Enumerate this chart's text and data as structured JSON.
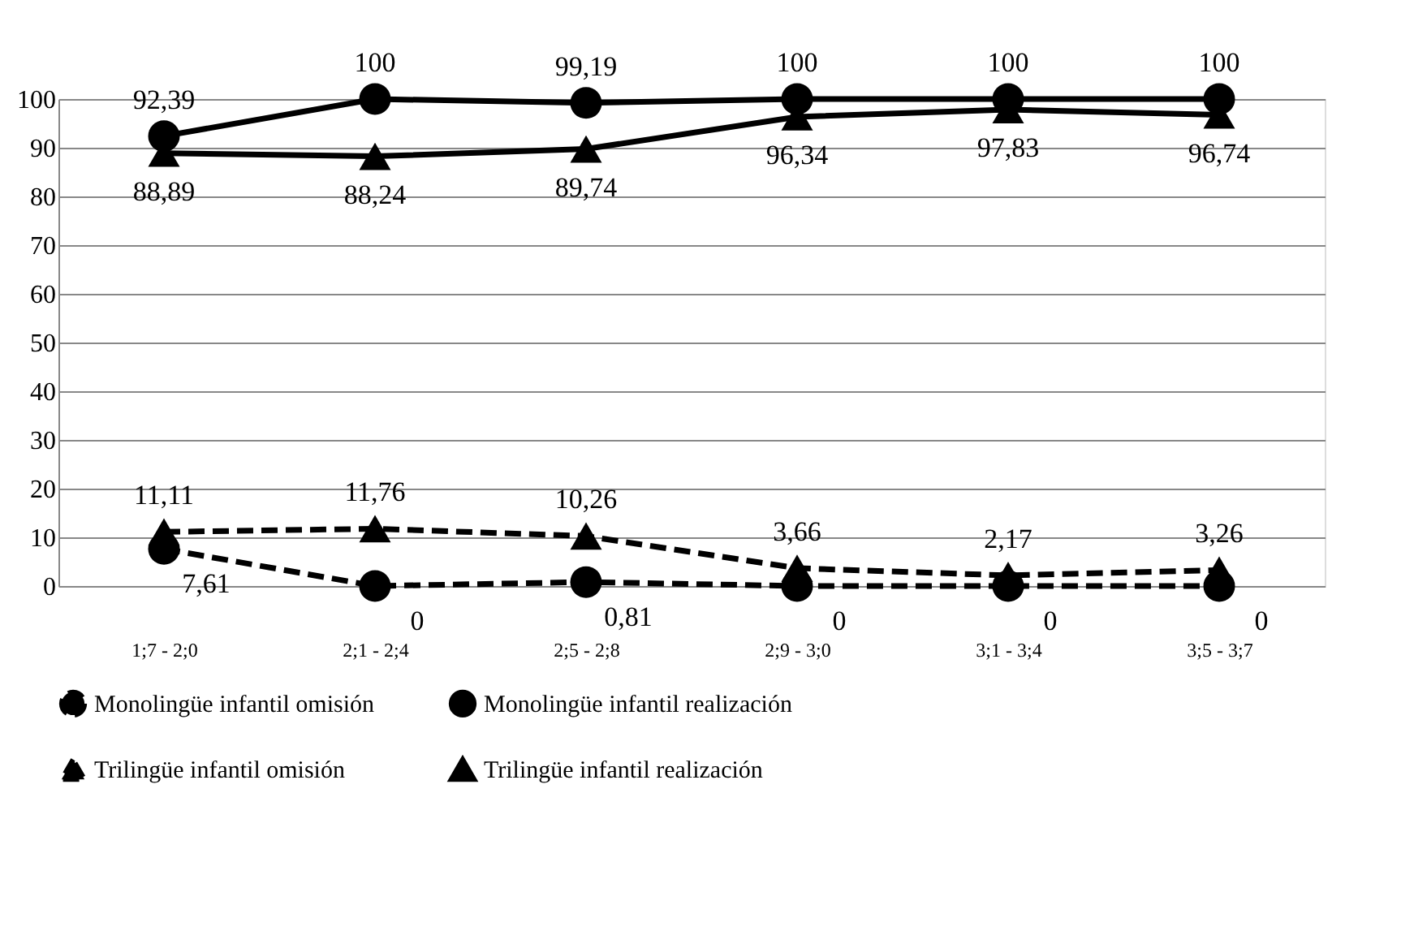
{
  "chart_data": {
    "type": "line",
    "categories": [
      "1;7 - 2;0",
      "2;1 - 2;4",
      "2;5 - 2;8",
      "2;9 - 3;0",
      "3;1 - 3;4",
      "3;5 - 3;7"
    ],
    "series": [
      {
        "name": "Monolingüe infantil omisión",
        "color": "#000000",
        "line_style": "dashed",
        "marker": "circle",
        "values": [
          7.61,
          0,
          0.81,
          0,
          0,
          0
        ],
        "value_labels": [
          "7,61",
          "0",
          "0,81",
          "0",
          "0",
          "0"
        ]
      },
      {
        "name": "Monolingüe infantil realización",
        "color": "#000000",
        "line_style": "solid",
        "marker": "circle",
        "values": [
          92.39,
          100,
          99.19,
          100,
          100,
          100
        ],
        "value_labels": [
          "92,39",
          "100",
          "99,19",
          "100",
          "100",
          "100"
        ]
      },
      {
        "name": "Trilingüe infantil omisión",
        "color": "#000000",
        "line_style": "dashed",
        "marker": "triangle",
        "values": [
          11.11,
          11.76,
          10.26,
          3.66,
          2.17,
          3.26
        ],
        "value_labels": [
          "11,11",
          "11,76",
          "10,26",
          "3,66",
          "2,17",
          "3,26"
        ]
      },
      {
        "name": "Trilingüe infantil realización",
        "color": "#000000",
        "line_style": "solid",
        "marker": "triangle",
        "values": [
          88.89,
          88.24,
          89.74,
          96.34,
          97.83,
          96.74
        ],
        "value_labels": [
          "88,89",
          "88,24",
          "89,74",
          "96,34",
          "97,83",
          "96,74"
        ]
      }
    ],
    "ylim": [
      0,
      100
    ],
    "yticks": [
      0,
      10,
      20,
      30,
      40,
      50,
      60,
      70,
      80,
      90,
      100
    ],
    "grid": "y",
    "legend": "bottom"
  }
}
